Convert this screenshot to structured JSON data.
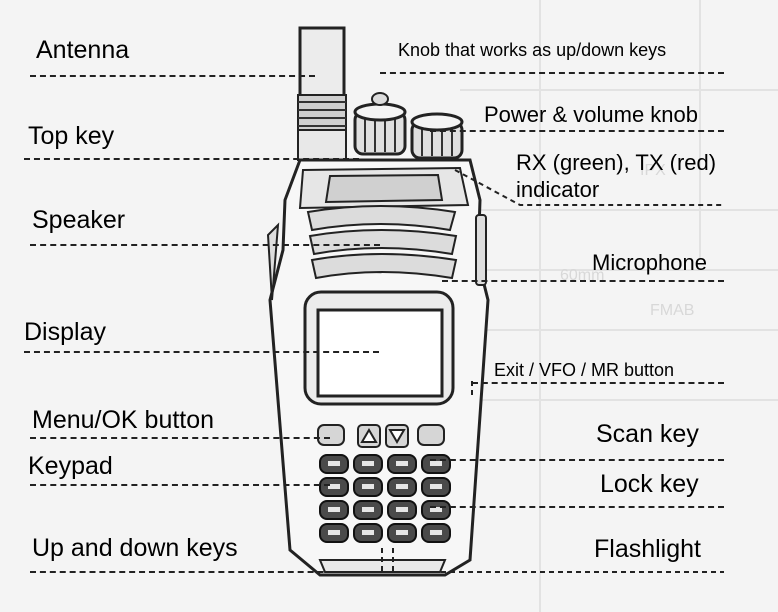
{
  "diagram": {
    "labels": {
      "antenna": "Antenna",
      "top_key": "Top key",
      "speaker": "Speaker",
      "display": "Display",
      "menu_ok_button": "Menu/OK button",
      "keypad": "Keypad",
      "up_down_keys": "Up and down keys",
      "knob_up_down": "Knob that works as up/down keys",
      "power_volume_knob": "Power & volume knob",
      "rx_tx_line1": "RX (green), TX (red)",
      "rx_tx_line2": "indicator",
      "microphone": "Microphone",
      "exit_vfo_mr": "Exit / VFO / MR button",
      "scan_key": "Scan key",
      "lock_key": "Lock key",
      "flashlight": "Flashlight"
    }
  }
}
